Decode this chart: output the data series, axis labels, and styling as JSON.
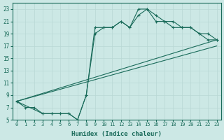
{
  "xlabel": "Humidex (Indice chaleur)",
  "ylabel": "",
  "bg_color": "#cce8e5",
  "line_color": "#1a6b5a",
  "grid_color": "#b8d8d4",
  "xlim": [
    -0.5,
    23.5
  ],
  "ylim": [
    5,
    24
  ],
  "xticks": [
    0,
    1,
    2,
    3,
    4,
    5,
    6,
    7,
    8,
    9,
    10,
    11,
    12,
    13,
    14,
    15,
    16,
    17,
    18,
    19,
    20,
    21,
    22,
    23
  ],
  "yticks": [
    5,
    7,
    9,
    11,
    13,
    15,
    17,
    19,
    21,
    23
  ],
  "series": [
    {
      "x": [
        0,
        1,
        2,
        3,
        4,
        5,
        6,
        7,
        8,
        9,
        10,
        11,
        12,
        13,
        14,
        15,
        16,
        17,
        18,
        19,
        20,
        21,
        22,
        23
      ],
      "y": [
        8,
        7,
        7,
        6,
        6,
        6,
        6,
        5,
        9,
        20,
        20,
        20,
        21,
        20,
        22,
        23,
        22,
        21,
        21,
        20,
        20,
        19,
        19,
        18
      ],
      "marker": true
    },
    {
      "x": [
        0,
        3,
        4,
        5,
        6,
        7,
        8,
        9,
        10,
        11,
        12,
        13,
        14,
        15,
        16,
        17,
        18,
        19,
        20,
        21,
        22,
        23
      ],
      "y": [
        8,
        6,
        6,
        6,
        6,
        5,
        9,
        19,
        20,
        20,
        21,
        20,
        23,
        23,
        21,
        21,
        20,
        20,
        20,
        19,
        18,
        18
      ],
      "marker": true
    },
    {
      "x": [
        0,
        23
      ],
      "y": [
        8,
        18
      ],
      "marker": false
    },
    {
      "x": [
        0,
        23
      ],
      "y": [
        8,
        17
      ],
      "marker": false
    }
  ]
}
